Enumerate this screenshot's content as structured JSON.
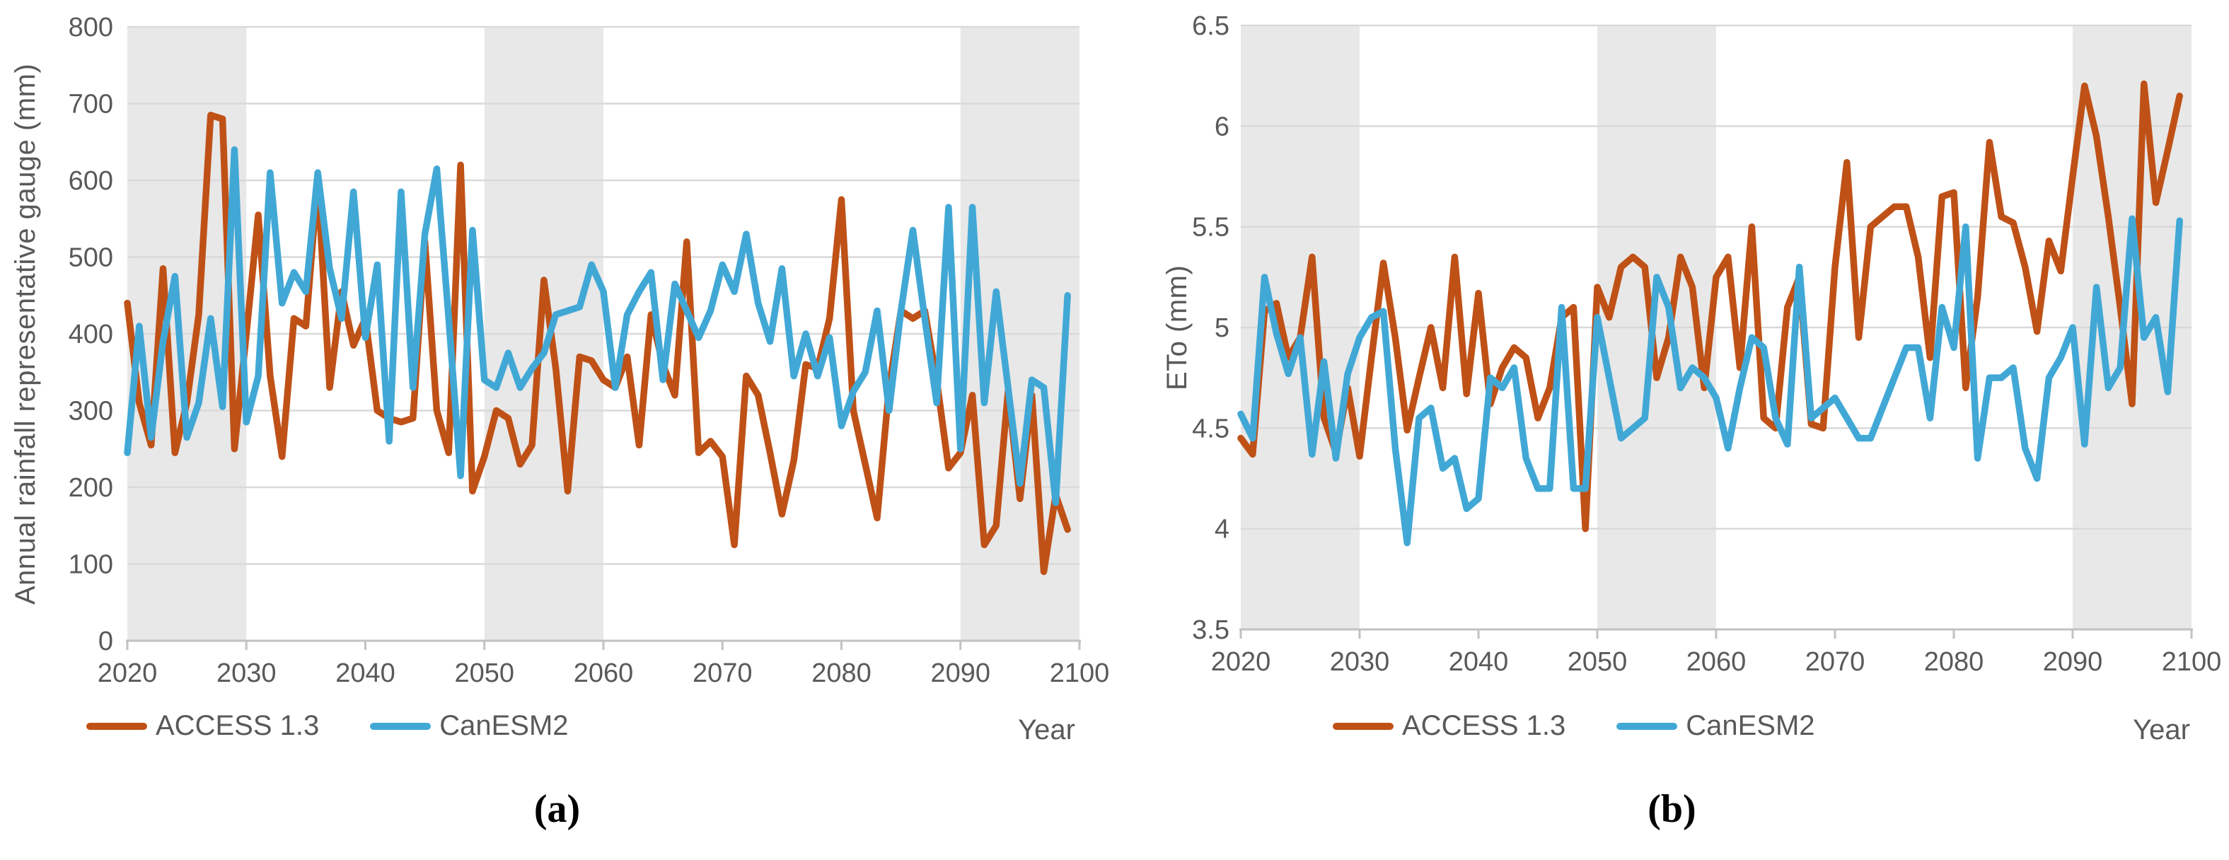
{
  "figure": {
    "description": "Two-panel projected climate line charts, panels (a) annual rainfall and (b) reference evapotranspiration, 2020-2100, models ACCESS 1.3 and CanESM2",
    "captions": {
      "a": "(a)",
      "b": "(b)"
    }
  },
  "colors": {
    "access13": "#BF5117",
    "canesm2": "#41A8D6",
    "band": "#E8E8E8",
    "gridline": "#D9D9D9",
    "axis_line": "#C2C2C2",
    "text": "#595959"
  },
  "chart_data": [
    {
      "type": "line",
      "title": "",
      "ylabel": "Annual rainfall representative gauge (mm)",
      "xlabel": "Year",
      "xlim": [
        2020,
        2100
      ],
      "ylim": [
        0,
        800
      ],
      "grid": true,
      "legend_position": "bottom-left",
      "xticks": [
        2020,
        2030,
        2040,
        2050,
        2060,
        2070,
        2080,
        2090,
        2100
      ],
      "ytick_labels": [
        "0",
        "100",
        "200",
        "300",
        "400",
        "500",
        "600",
        "700",
        "800"
      ],
      "yticks": [
        0,
        100,
        200,
        300,
        400,
        500,
        600,
        700,
        800
      ],
      "shaded_x_bands": [
        [
          2020,
          2030
        ],
        [
          2050,
          2060
        ],
        [
          2090,
          2100
        ]
      ],
      "x_start": 2020,
      "x_end": 2099,
      "x_step": 1,
      "series": [
        {
          "name": "ACCESS 1.3",
          "color": "#BF5117",
          "values": [
            440,
            310,
            255,
            485,
            245,
            310,
            425,
            685,
            680,
            250,
            400,
            555,
            345,
            240,
            420,
            410,
            600,
            330,
            455,
            385,
            420,
            300,
            290,
            285,
            290,
            520,
            300,
            245,
            620,
            195,
            240,
            300,
            290,
            230,
            255,
            470,
            355,
            195,
            370,
            365,
            340,
            330,
            370,
            255,
            425,
            360,
            320,
            520,
            245,
            260,
            240,
            125,
            345,
            320,
            245,
            165,
            235,
            360,
            355,
            420,
            575,
            300,
            230,
            160,
            330,
            430,
            420,
            430,
            340,
            225,
            245,
            320,
            125,
            150,
            325,
            185,
            320,
            90,
            190,
            145
          ]
        },
        {
          "name": "CanESM2",
          "color": "#41A8D6",
          "values": [
            245,
            410,
            265,
            390,
            475,
            265,
            310,
            420,
            305,
            640,
            285,
            345,
            610,
            440,
            480,
            455,
            610,
            485,
            420,
            585,
            395,
            490,
            260,
            585,
            330,
            530,
            615,
            420,
            215,
            535,
            340,
            330,
            375,
            330,
            355,
            375,
            425,
            430,
            435,
            490,
            455,
            330,
            425,
            455,
            480,
            340,
            465,
            430,
            395,
            430,
            490,
            455,
            530,
            440,
            390,
            485,
            345,
            400,
            345,
            395,
            280,
            325,
            350,
            430,
            300,
            430,
            535,
            420,
            310,
            565,
            250,
            565,
            310,
            455,
            330,
            205,
            340,
            330,
            180,
            450
          ]
        }
      ]
    },
    {
      "type": "line",
      "title": "",
      "ylabel": "ETo (mm)",
      "xlabel": "Year",
      "xlim": [
        2020,
        2100
      ],
      "ylim": [
        3.5,
        6.5
      ],
      "grid": true,
      "legend_position": "bottom-left",
      "xticks": [
        2020,
        2030,
        2040,
        2050,
        2060,
        2070,
        2080,
        2090,
        2100
      ],
      "ytick_labels": [
        "3.5",
        "4",
        "4.5",
        "5",
        "5.5",
        "6",
        "6.5"
      ],
      "yticks": [
        3.5,
        4,
        4.5,
        5,
        5.5,
        6,
        6.5
      ],
      "shaded_x_bands": [
        [
          2020,
          2030
        ],
        [
          2050,
          2060
        ],
        [
          2090,
          2100
        ]
      ],
      "x_start": 2020,
      "x_end": 2099,
      "x_step": 1,
      "series": [
        {
          "name": "ACCESS 1.3",
          "color": "#BF5117",
          "values": [
            4.45,
            4.37,
            5.08,
            5.12,
            4.85,
            4.95,
            5.35,
            4.55,
            4.38,
            4.7,
            4.36,
            4.85,
            5.32,
            4.95,
            4.49,
            4.75,
            5.0,
            4.7,
            5.35,
            4.67,
            5.17,
            4.62,
            4.8,
            4.9,
            4.85,
            4.55,
            4.7,
            5.05,
            5.1,
            4.0,
            5.2,
            5.05,
            5.3,
            5.35,
            5.3,
            4.75,
            4.95,
            5.35,
            5.2,
            4.7,
            5.25,
            5.35,
            4.8,
            5.5,
            4.55,
            4.5,
            5.1,
            5.25,
            4.52,
            4.5,
            5.3,
            5.82,
            4.95,
            5.5,
            5.55,
            5.6,
            5.6,
            5.35,
            4.85,
            5.65,
            5.67,
            4.7,
            5.15,
            5.92,
            5.55,
            5.52,
            5.3,
            4.98,
            5.43,
            5.28,
            5.75,
            6.2,
            5.95,
            5.55,
            5.1,
            4.62,
            6.21,
            5.62,
            5.88,
            6.15
          ]
        },
        {
          "name": "CanESM2",
          "color": "#41A8D6",
          "values": [
            4.57,
            4.45,
            5.25,
            4.97,
            4.77,
            4.95,
            4.37,
            4.83,
            4.35,
            4.77,
            4.95,
            5.05,
            5.08,
            4.4,
            3.93,
            4.55,
            4.6,
            4.3,
            4.35,
            4.1,
            4.15,
            4.75,
            4.7,
            4.8,
            4.35,
            4.2,
            4.2,
            5.1,
            4.2,
            4.2,
            5.05,
            4.75,
            4.45,
            4.5,
            4.55,
            5.25,
            5.1,
            4.7,
            4.8,
            4.75,
            4.65,
            4.4,
            4.7,
            4.95,
            4.9,
            4.55,
            4.42,
            5.3,
            4.55,
            4.6,
            4.65,
            4.55,
            4.45,
            4.45,
            4.6,
            4.75,
            4.9,
            4.9,
            4.55,
            5.1,
            4.9,
            5.5,
            4.35,
            4.75,
            4.75,
            4.8,
            4.4,
            4.25,
            4.75,
            4.85,
            5.0,
            4.42,
            5.2,
            4.7,
            4.8,
            5.54,
            4.95,
            5.05,
            4.68,
            5.53
          ]
        }
      ]
    }
  ]
}
